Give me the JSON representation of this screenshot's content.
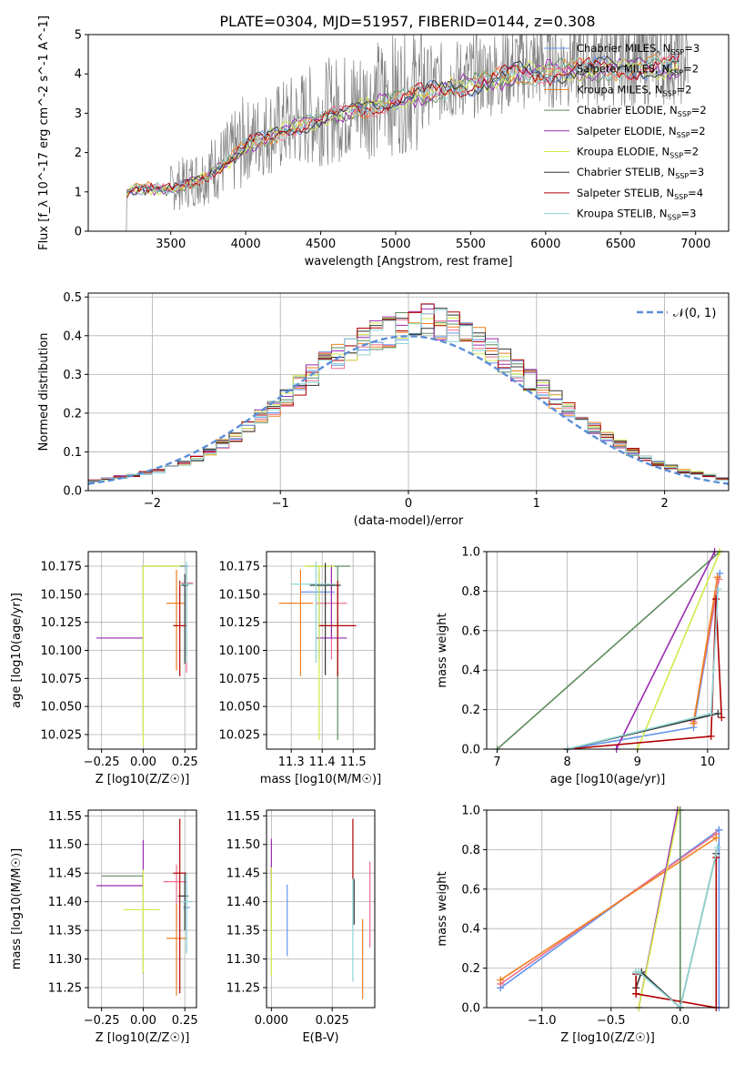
{
  "figure": {
    "title": "PLATE=0304, MJD=51957, FIBERID=0144, z=0.308"
  },
  "colors": {
    "Chabrier MILES": "#6495ed",
    "Salpeter MILES": "#ee6e8e",
    "Kroupa MILES": "#f07f1e",
    "Chabrier ELODIE": "#5e8c5e",
    "Salpeter ELODIE": "#9a2bb0",
    "Kroupa ELODIE": "#d2ea4a",
    "Chabrier STELIB": "#333333",
    "Salpeter STELIB": "#b00000",
    "Kroupa STELIB": "#8fd4d4",
    "data": "#808080",
    "normal": "#5b8ed6"
  },
  "chart_data": [
    {
      "id": "spectrum",
      "type": "line",
      "title": "PLATE=0304, MJD=51957, FIBERID=0144, z=0.308",
      "xlabel": "wavelength [Angstrom, rest frame]",
      "ylabel": "Flux [f_λ 10^-17 erg cm^-2 s^-1 A^-1]",
      "xlim": [
        2950,
        7220
      ],
      "ylim": [
        0,
        5
      ],
      "xticks": [
        "3500",
        "4000",
        "4500",
        "5000",
        "5500",
        "6000",
        "6500",
        "7000"
      ],
      "yticks": [
        "0",
        "1",
        "2",
        "3",
        "4",
        "5"
      ],
      "grid": false,
      "legend": "top-right",
      "legend_entries": [
        {
          "name": "Chabrier MILES",
          "nssp": "3"
        },
        {
          "name": "Salpeter MILES",
          "nssp": "2"
        },
        {
          "name": "Kroupa MILES",
          "nssp": "2"
        },
        {
          "name": "Chabrier ELODIE",
          "nssp": "2"
        },
        {
          "name": "Salpeter ELODIE",
          "nssp": "2"
        },
        {
          "name": "Kroupa ELODIE",
          "nssp": "2"
        },
        {
          "name": "Chabrier STELIB",
          "nssp": "3"
        },
        {
          "name": "Salpeter STELIB",
          "nssp": "4"
        },
        {
          "name": "Kroupa STELIB",
          "nssp": "3"
        }
      ],
      "data_envelope": {
        "x": [
          3200,
          3300,
          3500,
          3700,
          3900,
          4000,
          4200,
          4400,
          4600,
          4800,
          5000,
          5200,
          5400,
          5600,
          5800,
          6000,
          6200,
          6400,
          6600,
          6800,
          6950
        ],
        "y": [
          1.05,
          1.15,
          1.1,
          1.4,
          1.9,
          2.3,
          2.6,
          2.9,
          3.1,
          3.3,
          3.5,
          3.7,
          3.85,
          4.0,
          4.2,
          4.25,
          4.3,
          4.35,
          4.35,
          4.4,
          4.4
        ]
      }
    },
    {
      "id": "residual-hist",
      "type": "histogram",
      "xlabel": "(data-model)/error",
      "ylabel": "Normed distribution",
      "xlim": [
        -2.5,
        2.5
      ],
      "ylim": [
        0,
        0.51
      ],
      "xticks": [
        "−2",
        "−1",
        "0",
        "1",
        "2"
      ],
      "yticks": [
        "0.0",
        "0.1",
        "0.2",
        "0.3",
        "0.4",
        "0.5"
      ],
      "grid": true,
      "legend": "top-right",
      "legend_entries": [
        {
          "name": "𝒩(0, 1)"
        }
      ],
      "bins": [
        -2.5,
        -2.4,
        -2.3,
        -2.2,
        -2.1,
        -2.0,
        -1.9,
        -1.8,
        -1.7,
        -1.6,
        -1.5,
        -1.4,
        -1.3,
        -1.2,
        -1.1,
        -1.0,
        -0.9,
        -0.8,
        -0.7,
        -0.6,
        -0.5,
        -0.4,
        -0.3,
        -0.2,
        -0.1,
        0.0,
        0.1,
        0.2,
        0.3,
        0.4,
        0.5,
        0.6,
        0.7,
        0.8,
        0.9,
        1.0,
        1.1,
        1.2,
        1.3,
        1.4,
        1.5,
        1.6,
        1.7,
        1.8,
        1.9,
        2.0,
        2.1,
        2.2,
        2.3,
        2.4,
        2.5
      ],
      "base_density": [
        0.025,
        0.03,
        0.035,
        0.04,
        0.045,
        0.05,
        0.06,
        0.07,
        0.085,
        0.1,
        0.12,
        0.14,
        0.165,
        0.19,
        0.21,
        0.24,
        0.27,
        0.3,
        0.33,
        0.35,
        0.37,
        0.385,
        0.4,
        0.41,
        0.42,
        0.43,
        0.44,
        0.43,
        0.42,
        0.405,
        0.385,
        0.36,
        0.34,
        0.31,
        0.285,
        0.26,
        0.235,
        0.21,
        0.185,
        0.16,
        0.14,
        0.12,
        0.1,
        0.085,
        0.07,
        0.06,
        0.05,
        0.045,
        0.04,
        0.03
      ]
    },
    {
      "id": "age-vs-z",
      "type": "errorbar",
      "xlabel": "Z [log10(Z/Z☉)]",
      "ylabel": "age  [log10(age/yr)]",
      "xlim": [
        -0.33,
        0.32
      ],
      "ylim": [
        10.012,
        10.188
      ],
      "xticks": [
        "−0.25",
        "0.00",
        "0.25"
      ],
      "yticks": [
        "10.025",
        "10.050",
        "10.075",
        "10.100",
        "10.125",
        "10.150",
        "10.175"
      ],
      "grid": true,
      "points": [
        {
          "series": "Chabrier MILES",
          "x": 0.26,
          "y": 10.175,
          "xerr": [
            0.01,
            0.01
          ],
          "yerr": [
            0.08,
            0.0
          ]
        },
        {
          "series": "Salpeter MILES",
          "x": 0.26,
          "y": 10.16,
          "xerr": [
            0.03,
            0.04
          ],
          "yerr": [
            0.08,
            0.015
          ]
        },
        {
          "series": "Kroupa MILES",
          "x": 0.2,
          "y": 10.142,
          "xerr": [
            0.06,
            0.05
          ],
          "yerr": [
            0.06,
            0.03
          ]
        },
        {
          "series": "Chabrier ELODIE",
          "x": 0.0,
          "y": 10.175,
          "xerr": [
            0.0,
            0.25
          ],
          "yerr": [
            0.15,
            0.0
          ]
        },
        {
          "series": "Salpeter ELODIE",
          "x": 0.0,
          "y": 10.111,
          "xerr": [
            0.28,
            0.0
          ],
          "yerr": [
            0.0,
            0.0
          ]
        },
        {
          "series": "Kroupa ELODIE",
          "x": 0.0,
          "y": 10.175,
          "xerr": [
            0.0,
            0.22
          ],
          "yerr": [
            0.16,
            0.0
          ]
        },
        {
          "series": "Chabrier STELIB",
          "x": 0.25,
          "y": 10.158,
          "xerr": [
            0.02,
            0.02
          ],
          "yerr": [
            0.07,
            0.01
          ]
        },
        {
          "series": "Salpeter STELIB",
          "x": 0.22,
          "y": 10.122,
          "xerr": [
            0.04,
            0.04
          ],
          "yerr": [
            0.045,
            0.04
          ]
        },
        {
          "series": "Kroupa STELIB",
          "x": 0.26,
          "y": 10.159,
          "xerr": [
            0.04,
            0.04
          ],
          "yerr": [
            0.07,
            0.02
          ]
        }
      ]
    },
    {
      "id": "age-vs-mass",
      "type": "errorbar",
      "xlabel": "mass [log10(M/M☉)]",
      "ylabel": "",
      "xlim": [
        11.22,
        11.57
      ],
      "ylim": [
        10.012,
        10.188
      ],
      "xticks": [
        "11.3",
        "11.4",
        "11.5"
      ],
      "yticks": [
        "10.025",
        "10.050",
        "10.075",
        "10.100",
        "10.125",
        "10.150",
        "10.175"
      ],
      "grid": true,
      "points": [
        {
          "series": "Chabrier MILES",
          "x": 11.39,
          "y": 10.152,
          "xerr": [
            0.06,
            0.05
          ],
          "yerr": [
            0.06,
            0.02
          ]
        },
        {
          "series": "Salpeter MILES",
          "x": 11.43,
          "y": 10.142,
          "xerr": [
            0.05,
            0.05
          ],
          "yerr": [
            0.05,
            0.03
          ]
        },
        {
          "series": "Kroupa MILES",
          "x": 11.33,
          "y": 10.142,
          "xerr": [
            0.07,
            0.04
          ],
          "yerr": [
            0.065,
            0.03
          ]
        },
        {
          "series": "Chabrier ELODIE",
          "x": 11.45,
          "y": 10.175,
          "xerr": [
            0.1,
            0.04
          ],
          "yerr": [
            0.155,
            0.0
          ]
        },
        {
          "series": "Salpeter ELODIE",
          "x": 11.43,
          "y": 10.111,
          "xerr": [
            0.05,
            0.05
          ],
          "yerr": [
            0.0,
            0.065
          ]
        },
        {
          "series": "Kroupa ELODIE",
          "x": 11.39,
          "y": 10.175,
          "xerr": [
            0.05,
            0.05
          ],
          "yerr": [
            0.155,
            0.0
          ]
        },
        {
          "series": "Chabrier STELIB",
          "x": 11.41,
          "y": 10.158,
          "xerr": [
            0.05,
            0.05
          ],
          "yerr": [
            0.08,
            0.02
          ]
        },
        {
          "series": "Salpeter STELIB",
          "x": 11.45,
          "y": 10.122,
          "xerr": [
            0.06,
            0.06
          ],
          "yerr": [
            0.045,
            0.04
          ]
        },
        {
          "series": "Kroupa STELIB",
          "x": 11.38,
          "y": 10.159,
          "xerr": [
            0.08,
            0.06
          ],
          "yerr": [
            0.07,
            0.02
          ]
        }
      ]
    },
    {
      "id": "weight-vs-age",
      "type": "line",
      "xlabel": "age  [log10(age/yr)]",
      "ylabel": "mass weight",
      "xlim": [
        6.85,
        10.3
      ],
      "ylim": [
        0,
        1
      ],
      "xticks": [
        "7",
        "8",
        "9",
        "10"
      ],
      "yticks": [
        "0.0",
        "0.2",
        "0.4",
        "0.6",
        "0.8",
        "1.0"
      ],
      "grid": true,
      "series": [
        {
          "name": "Chabrier MILES",
          "x": [
            8.0,
            9.8,
            10.175
          ],
          "y": [
            0.0,
            0.11,
            0.89
          ]
        },
        {
          "name": "Salpeter MILES",
          "x": [
            9.8,
            10.16
          ],
          "y": [
            0.14,
            0.86
          ]
        },
        {
          "name": "Kroupa MILES",
          "x": [
            9.8,
            10.14
          ],
          "y": [
            0.13,
            0.87
          ]
        },
        {
          "name": "Chabrier ELODIE",
          "x": [
            7.0,
            10.175
          ],
          "y": [
            0.0,
            1.0
          ]
        },
        {
          "name": "Salpeter ELODIE",
          "x": [
            8.7,
            10.1
          ],
          "y": [
            0.0,
            1.0
          ]
        },
        {
          "name": "Kroupa ELODIE",
          "x": [
            9.0,
            10.175
          ],
          "y": [
            0.0,
            1.0
          ]
        },
        {
          "name": "Chabrier STELIB",
          "x": [
            8.0,
            10.15
          ],
          "y": [
            0.0,
            0.18
          ]
        },
        {
          "name": "Salpeter STELIB",
          "x": [
            8.0,
            10.05,
            10.12,
            10.2
          ],
          "y": [
            0.0,
            0.065,
            0.76,
            0.16
          ]
        },
        {
          "name": "Kroupa STELIB",
          "x": [
            8.0,
            10.05,
            10.15
          ],
          "y": [
            0.0,
            0.18,
            0.81
          ]
        }
      ]
    },
    {
      "id": "mass-vs-z",
      "type": "errorbar",
      "xlabel": "Z [log10(Z/Z☉)]",
      "ylabel": "mass [log10(M/M☉)]",
      "xlim": [
        -0.33,
        0.32
      ],
      "ylim": [
        11.215,
        11.56
      ],
      "xticks": [
        "−0.25",
        "0.00",
        "0.25"
      ],
      "yticks": [
        "11.25",
        "11.30",
        "11.35",
        "11.40",
        "11.45",
        "11.50",
        "11.55"
      ],
      "grid": true,
      "points": [
        {
          "series": "Chabrier MILES",
          "x": 0.26,
          "y": 11.39,
          "xerr": [
            0.02,
            0.02
          ],
          "yerr": [
            0.08,
            0.05
          ]
        },
        {
          "series": "Salpeter MILES",
          "x": 0.2,
          "y": 11.435,
          "xerr": [
            0.08,
            0.06
          ],
          "yerr": [
            0.08,
            0.03
          ]
        },
        {
          "series": "Kroupa MILES",
          "x": 0.2,
          "y": 11.336,
          "xerr": [
            0.06,
            0.06
          ],
          "yerr": [
            0.1,
            0.06
          ]
        },
        {
          "series": "Chabrier ELODIE",
          "x": 0.0,
          "y": 11.445,
          "xerr": [
            0.25,
            0.0
          ],
          "yerr": [
            0.17,
            0.0
          ]
        },
        {
          "series": "Salpeter ELODIE",
          "x": 0.0,
          "y": 11.428,
          "xerr": [
            0.28,
            0.0
          ],
          "yerr": [
            0.0,
            0.08
          ]
        },
        {
          "series": "Kroupa ELODIE",
          "x": 0.0,
          "y": 11.386,
          "xerr": [
            0.12,
            0.1
          ],
          "yerr": [
            0.11,
            0.07
          ]
        },
        {
          "series": "Chabrier STELIB",
          "x": 0.25,
          "y": 11.41,
          "xerr": [
            0.04,
            0.02
          ],
          "yerr": [
            0.06,
            0.04
          ]
        },
        {
          "series": "Salpeter STELIB",
          "x": 0.22,
          "y": 11.45,
          "xerr": [
            0.04,
            0.04
          ],
          "yerr": [
            0.21,
            0.095
          ]
        },
        {
          "series": "Kroupa STELIB",
          "x": 0.26,
          "y": 11.4,
          "xerr": [
            0.03,
            0.03
          ],
          "yerr": [
            0.09,
            0.05
          ]
        }
      ]
    },
    {
      "id": "mass-vs-ebv",
      "type": "errorbar",
      "xlabel": "E(B-V)",
      "ylabel": "",
      "xlim": [
        -0.002,
        0.0425
      ],
      "ylim": [
        11.215,
        11.56
      ],
      "xticks": [
        "0.000",
        "0.025"
      ],
      "yticks": [
        "11.25",
        "11.30",
        "11.35",
        "11.40",
        "11.45",
        "11.50",
        "11.55"
      ],
      "grid": true,
      "points": [
        {
          "series": "Chabrier MILES",
          "x": 0.0065,
          "y": 11.37,
          "xerr": [
            0,
            0
          ],
          "yerr": [
            0.065,
            0.06
          ]
        },
        {
          "series": "Salpeter MILES",
          "x": 0.0405,
          "y": 11.39,
          "xerr": [
            0,
            0
          ],
          "yerr": [
            0.07,
            0.08
          ]
        },
        {
          "series": "Kroupa MILES",
          "x": 0.0375,
          "y": 11.3,
          "xerr": [
            0,
            0
          ],
          "yerr": [
            0.07,
            0.07
          ]
        },
        {
          "series": "Chabrier ELODIE",
          "x": 0.0,
          "y": 11.43,
          "xerr": [
            0,
            0
          ],
          "yerr": [
            0.08,
            0.03
          ]
        },
        {
          "series": "Salpeter ELODIE",
          "x": 0.0,
          "y": 11.47,
          "xerr": [
            0,
            0
          ],
          "yerr": [
            0.05,
            0.04
          ]
        },
        {
          "series": "Kroupa ELODIE",
          "x": 0.0,
          "y": 11.38,
          "xerr": [
            0,
            0
          ],
          "yerr": [
            0.11,
            0.08
          ]
        },
        {
          "series": "Chabrier STELIB",
          "x": 0.034,
          "y": 11.41,
          "xerr": [
            0,
            0
          ],
          "yerr": [
            0.05,
            0.03
          ]
        },
        {
          "series": "Salpeter STELIB",
          "x": 0.0335,
          "y": 11.49,
          "xerr": [
            0,
            0
          ],
          "yerr": [
            0.05,
            0.055
          ]
        },
        {
          "series": "Kroupa STELIB",
          "x": 0.0335,
          "y": 11.35,
          "xerr": [
            0,
            0
          ],
          "yerr": [
            0.09,
            0.09
          ]
        }
      ]
    },
    {
      "id": "weight-vs-z",
      "type": "line",
      "xlabel": "Z [log10(Z/Z☉)]",
      "ylabel": "mass weight",
      "xlim": [
        -1.4,
        0.35
      ],
      "ylim": [
        0,
        1
      ],
      "xticks": [
        "−1.0",
        "−0.5",
        "0.0"
      ],
      "yticks": [
        "0.0",
        "0.2",
        "0.4",
        "0.6",
        "0.8",
        "1.0"
      ],
      "grid": true,
      "series": [
        {
          "name": "Chabrier MILES",
          "x": [
            -1.3,
            0.28,
            0.28,
            0.28
          ],
          "y": [
            0.1,
            0.9,
            0.0,
            0.9
          ]
        },
        {
          "name": "Salpeter MILES",
          "x": [
            -1.3,
            0.26
          ],
          "y": [
            0.12,
            0.88
          ]
        },
        {
          "name": "Kroupa MILES",
          "x": [
            -1.3,
            0.26
          ],
          "y": [
            0.14,
            0.86
          ]
        },
        {
          "name": "Chabrier ELODIE",
          "x": [
            0.0,
            0.0
          ],
          "y": [
            0.0,
            1.0
          ]
        },
        {
          "name": "Salpeter ELODIE",
          "x": [
            -0.3,
            -0.02
          ],
          "y": [
            0.0,
            1.0
          ]
        },
        {
          "name": "Kroupa ELODIE",
          "x": [
            -0.3,
            -0.01
          ],
          "y": [
            0.0,
            1.0
          ]
        },
        {
          "name": "Chabrier STELIB",
          "x": [
            -0.32,
            -0.32,
            -0.28,
            0.0,
            0.26
          ],
          "y": [
            0.17,
            0.1,
            0.18,
            0.0,
            0.78
          ]
        },
        {
          "name": "Salpeter STELIB",
          "x": [
            -0.32,
            -0.32,
            -0.32,
            0.26,
            0.26
          ],
          "y": [
            0.17,
            0.07,
            0.07,
            0.0,
            0.76
          ]
        },
        {
          "name": "Kroupa STELIB",
          "x": [
            -0.32,
            -0.3,
            0.0,
            0.27
          ],
          "y": [
            0.18,
            0.18,
            0.0,
            0.81
          ]
        }
      ]
    }
  ]
}
